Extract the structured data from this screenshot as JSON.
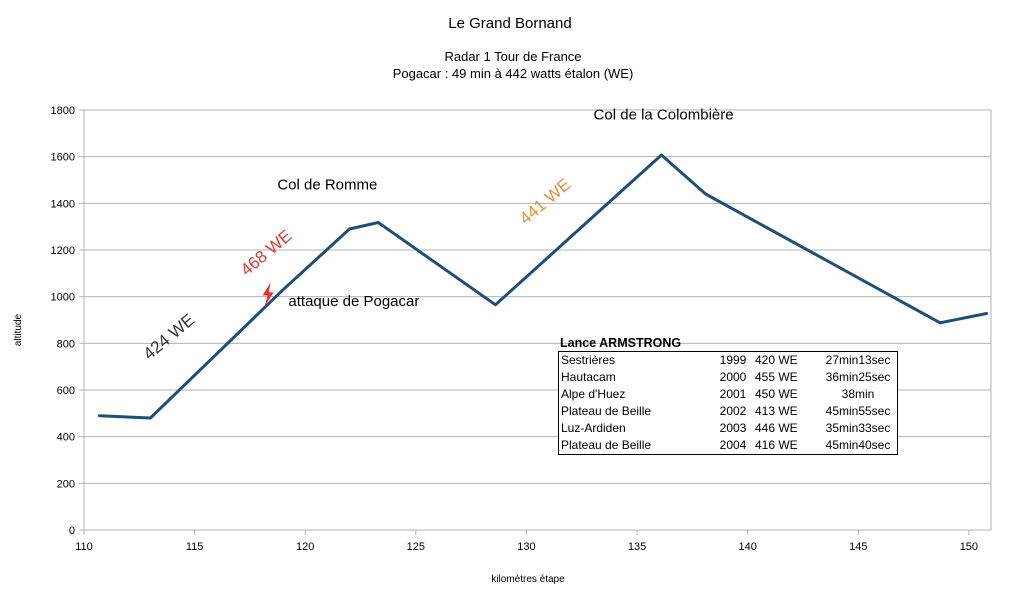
{
  "chart_data": {
    "type": "line",
    "title": "Le Grand Bornand",
    "subtitle_lines": [
      "Radar 1 Tour de France",
      "Pogacar : 49 min à 442 watts étalon (WE)"
    ],
    "xlabel": "kilomètres étape",
    "ylabel": "altitude",
    "xlim": [
      110,
      151
    ],
    "ylim": [
      0,
      1800
    ],
    "xticks": [
      110,
      115,
      120,
      125,
      130,
      135,
      140,
      145,
      150
    ],
    "yticks": [
      0,
      200,
      400,
      600,
      800,
      1000,
      1200,
      1400,
      1600,
      1800
    ],
    "grid": "horizontal",
    "line_color": "#1f4e79",
    "points": [
      [
        110.7,
        490
      ],
      [
        113.0,
        480
      ],
      [
        119.0,
        1030
      ],
      [
        122.0,
        1290
      ],
      [
        123.3,
        1318
      ],
      [
        128.6,
        965
      ],
      [
        136.1,
        1607
      ],
      [
        138.1,
        1440
      ],
      [
        148.7,
        888
      ],
      [
        150.8,
        928
      ]
    ],
    "annotations": [
      {
        "text": "Col de Romme",
        "x": 121,
        "y": 1460,
        "color": "#000000"
      },
      {
        "text": "Col de la Colombière",
        "x": 136.2,
        "y": 1760,
        "color": "#000000"
      },
      {
        "text": "attaque de Pogacar",
        "x": 122.2,
        "y": 960,
        "color": "#000000"
      },
      {
        "text": "424 WE",
        "x": 114.0,
        "y": 810,
        "color": "#333333",
        "rotate": -40
      },
      {
        "text": "468 WE",
        "x": 118.4,
        "y": 1170,
        "color": "#e03a3a",
        "rotate": -40
      },
      {
        "text": "441 WE",
        "x": 131.0,
        "y": 1390,
        "color": "#f08a3c",
        "rotate": -40
      }
    ],
    "attack_marker": {
      "x": 118.3,
      "y": 1010,
      "color": "#e82b2b",
      "icon": "lightning-bolt-icon"
    }
  },
  "legend": {
    "title": "Lance ARMSTRONG",
    "rows": [
      {
        "place": "Sestrières",
        "year": "1999",
        "we": "420 WE",
        "time": "27min13sec"
      },
      {
        "place": "Hautacam",
        "year": "2000",
        "we": "455 WE",
        "time": "36min25sec"
      },
      {
        "place": "Alpe d'Huez",
        "year": "2001",
        "we": "450 WE",
        "time": "38min"
      },
      {
        "place": "Plateau de Beille",
        "year": "2002",
        "we": "413 WE",
        "time": "45min55sec"
      },
      {
        "place": "Luz-Ardiden",
        "year": "2003",
        "we": "446 WE",
        "time": "35min33sec"
      },
      {
        "place": "Plateau de Beille",
        "year": "2004",
        "we": "416 WE",
        "time": "45min40sec"
      }
    ]
  }
}
